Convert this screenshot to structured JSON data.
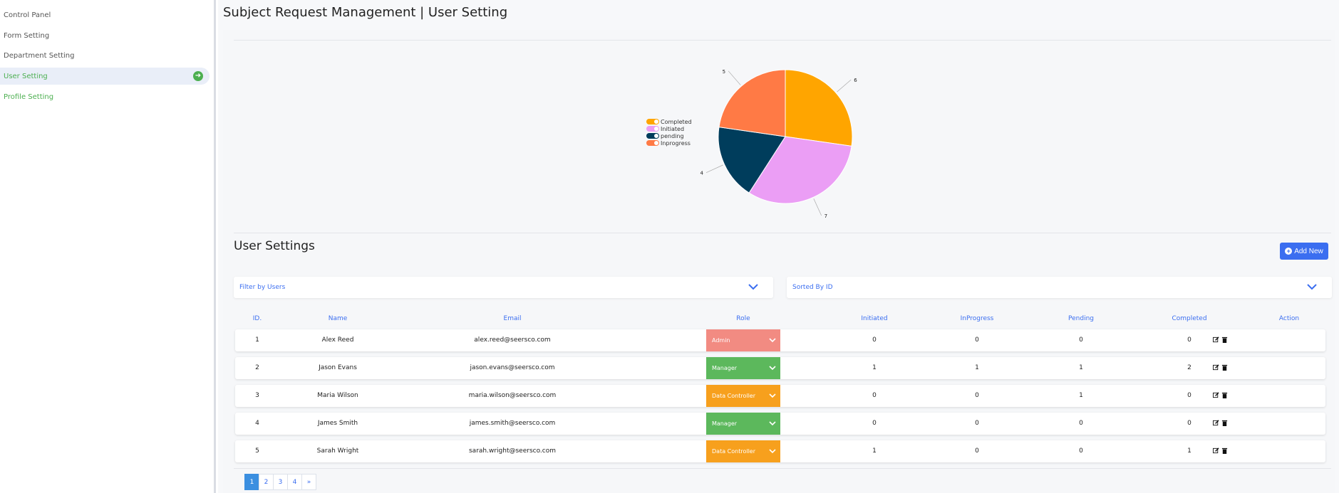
{
  "sidebar": {
    "items": [
      {
        "label": "Control Panel"
      },
      {
        "label": "Form Setting"
      },
      {
        "label": "Department Setting"
      },
      {
        "label": "User Setting"
      },
      {
        "label": "Profile Setting"
      }
    ]
  },
  "header": {
    "title": "Subject Request Management | User Setting"
  },
  "chart_data": {
    "type": "pie",
    "slices": [
      {
        "label": "Completed",
        "value": 6,
        "color": "#ffa500"
      },
      {
        "label": "Initiated",
        "value": 7,
        "color": "#eb9ef5"
      },
      {
        "label": "pending",
        "value": 4,
        "color": "#003d5c"
      },
      {
        "label": "Inprogress",
        "value": 5,
        "color": "#ff7a45"
      }
    ],
    "legend_position": "left"
  },
  "section": {
    "title": "User Settings",
    "add_label": "Add New"
  },
  "filters": {
    "users": "Filter by Users",
    "sort": "Sorted By ID"
  },
  "table": {
    "columns": [
      "ID.",
      "Name",
      "Email",
      "Role",
      "Initiated",
      "InProgress",
      "Pending",
      "Completed",
      "Action"
    ],
    "rows": [
      {
        "id": "1",
        "name": "Alex Reed",
        "email": "alex.reed@seersco.com",
        "role": "Admin",
        "role_color": "#f28b82",
        "initiated": "0",
        "inprogress": "0",
        "pending": "0",
        "completed": "0"
      },
      {
        "id": "2",
        "name": "Jason Evans",
        "email": "jason.evans@seersco.com",
        "role": "Manager",
        "role_color": "#5cb85c",
        "initiated": "1",
        "inprogress": "1",
        "pending": "1",
        "completed": "2"
      },
      {
        "id": "3",
        "name": "Maria Wilson",
        "email": "maria.wilson@seersco.com",
        "role": "Data Controller",
        "role_color": "#f7a01d",
        "initiated": "0",
        "inprogress": "0",
        "pending": "1",
        "completed": "0"
      },
      {
        "id": "4",
        "name": "James Smith",
        "email": "james.smith@seersco.com",
        "role": "Manager",
        "role_color": "#5cb85c",
        "initiated": "0",
        "inprogress": "0",
        "pending": "0",
        "completed": "0"
      },
      {
        "id": "5",
        "name": "Sarah Wright",
        "email": "sarah.wright@seersco.com",
        "role": "Data Controller",
        "role_color": "#f7a01d",
        "initiated": "1",
        "inprogress": "0",
        "pending": "0",
        "completed": "1"
      }
    ]
  },
  "pagination": {
    "pages": [
      "1",
      "2",
      "3",
      "4"
    ],
    "next": "»",
    "active": "1"
  }
}
